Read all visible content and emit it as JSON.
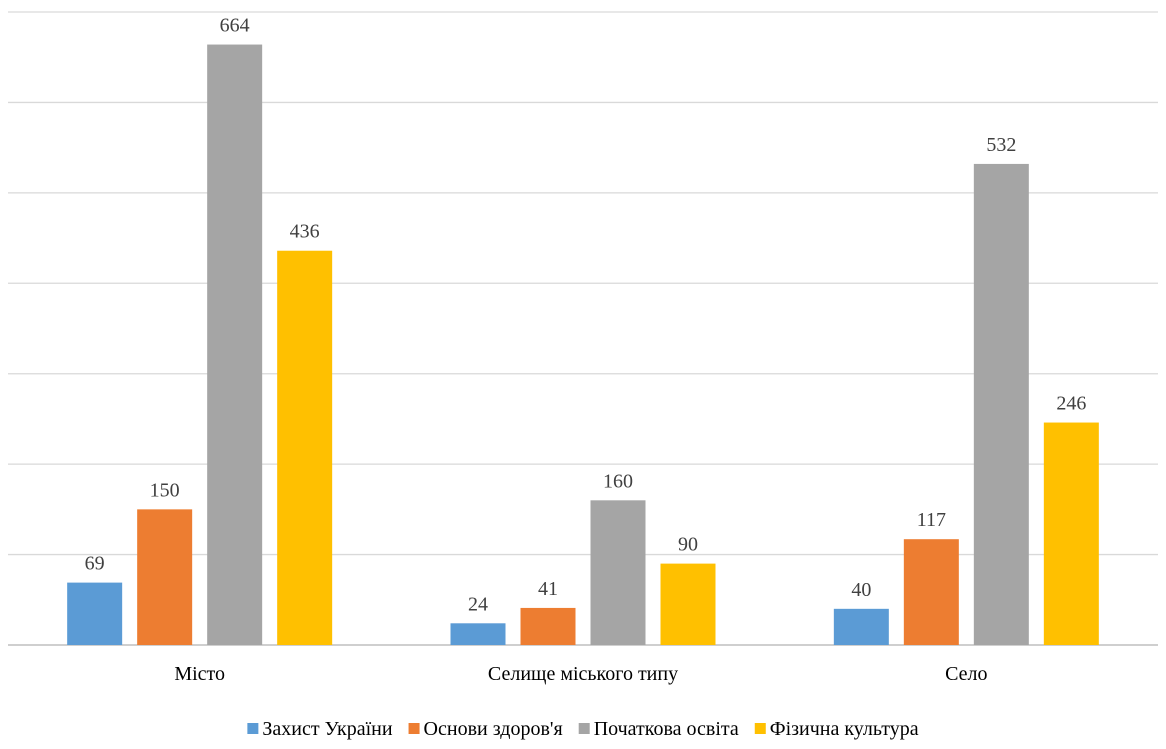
{
  "chart_data": {
    "type": "bar",
    "title": "",
    "xlabel": "",
    "ylabel": "",
    "categories": [
      "Місто",
      "Селище міського типу",
      "Село"
    ],
    "series": [
      {
        "name": "Захист України",
        "color": "#5b9bd5",
        "values": [
          69,
          24,
          40
        ]
      },
      {
        "name": "Основи здоров'я",
        "color": "#ed7d31",
        "values": [
          150,
          41,
          117
        ]
      },
      {
        "name": "Початкова освіта",
        "color": "#a5a5a5",
        "values": [
          664,
          160,
          532
        ]
      },
      {
        "name": "Фізична культура",
        "color": "#ffc000",
        "values": [
          436,
          90,
          246
        ]
      }
    ],
    "ylim": [
      0,
      700
    ],
    "grid": true,
    "legend_position": "bottom",
    "data_labels": true
  }
}
